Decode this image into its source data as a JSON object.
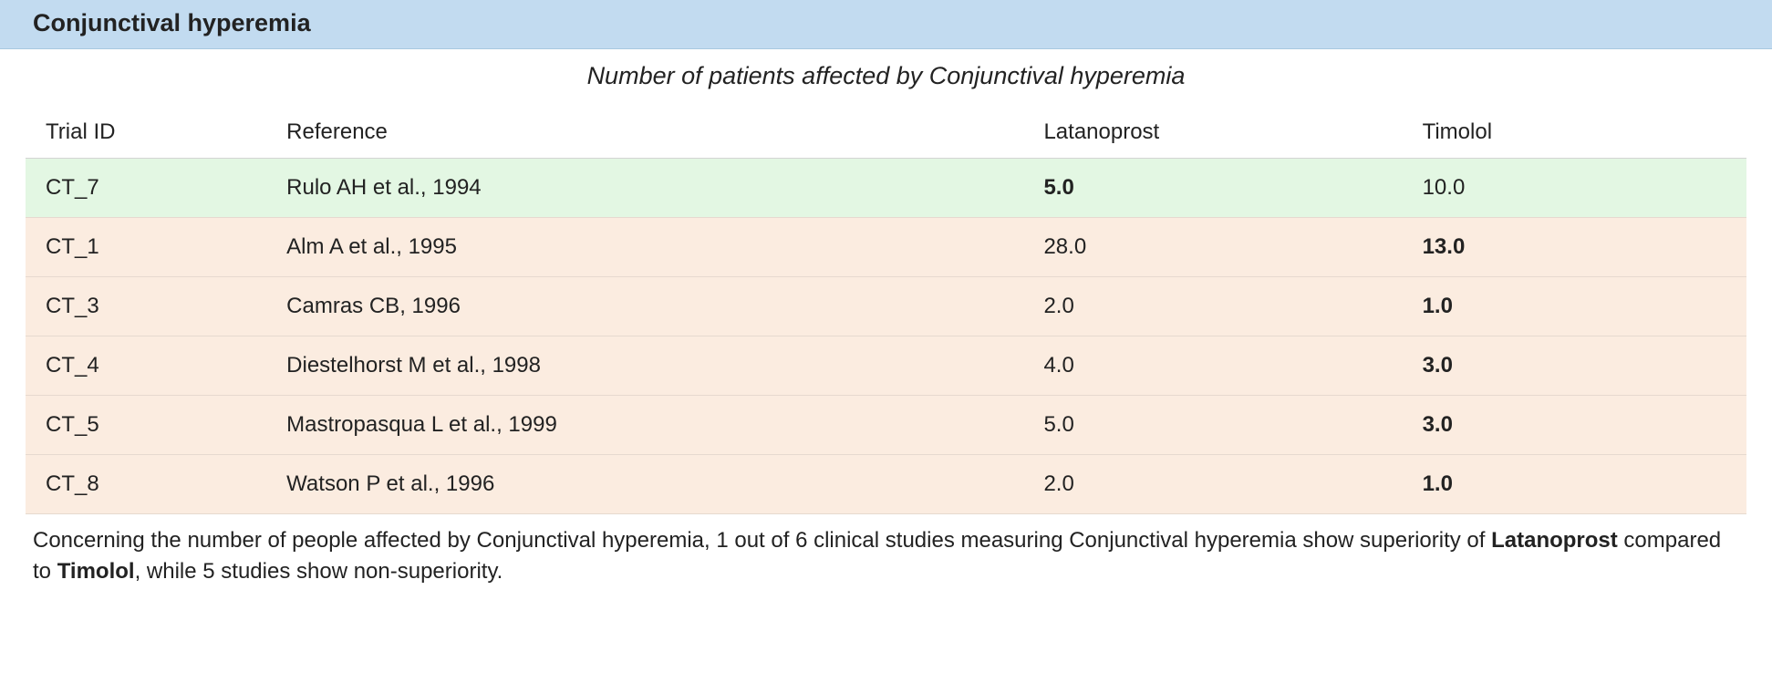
{
  "header": {
    "title": "Conjunctival hyperemia"
  },
  "caption": "Number of patients affected by Conjunctival hyperemia",
  "table": {
    "columns": [
      {
        "key": "trial_id",
        "label": "Trial ID"
      },
      {
        "key": "reference",
        "label": "Reference"
      },
      {
        "key": "latanoprost",
        "label": "Latanoprost"
      },
      {
        "key": "timolol",
        "label": "Timolol"
      }
    ],
    "rows": [
      {
        "trial_id": "CT_7",
        "reference": "Rulo AH et al., 1994",
        "lat": "5.0",
        "tim": "10.0",
        "bold": "lat",
        "row_color": "green"
      },
      {
        "trial_id": "CT_1",
        "reference": "Alm A et al., 1995",
        "lat": "28.0",
        "tim": "13.0",
        "bold": "tim",
        "row_color": "orange"
      },
      {
        "trial_id": "CT_3",
        "reference": "Camras CB, 1996",
        "lat": "2.0",
        "tim": "1.0",
        "bold": "tim",
        "row_color": "orange"
      },
      {
        "trial_id": "CT_4",
        "reference": "Diestelhorst M et al., 1998",
        "lat": "4.0",
        "tim": "3.0",
        "bold": "tim",
        "row_color": "orange"
      },
      {
        "trial_id": "CT_5",
        "reference": "Mastropasqua L et al., 1999",
        "lat": "5.0",
        "tim": "3.0",
        "bold": "tim",
        "row_color": "orange"
      },
      {
        "trial_id": "CT_8",
        "reference": "Watson P et al., 1996",
        "lat": "2.0",
        "tim": "1.0",
        "bold": "tim",
        "row_color": "orange"
      }
    ],
    "colors": {
      "header_bg": "#c2dbf0",
      "row_green_bg": "#e3f7e3",
      "row_orange_bg": "#fbece0",
      "border": "#d4d4d4"
    }
  },
  "summary": {
    "prefix": "Concerning the number of people affected by Conjunctival hyperemia, 1 out of 6 clinical studies measuring Conjunctival hyperemia show superiority of ",
    "drug1": "Latanoprost",
    "mid": " compared to ",
    "drug2": "Timolol",
    "suffix": ", while 5 studies show non-superiority."
  }
}
